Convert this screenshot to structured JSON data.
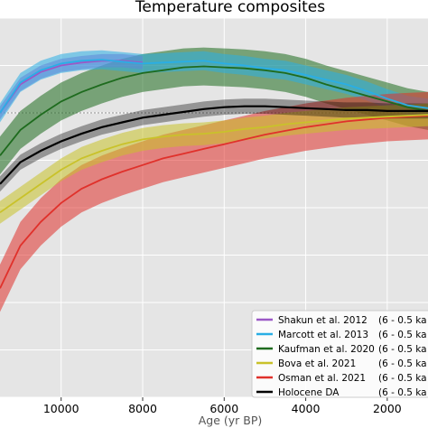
{
  "chart_data": {
    "type": "line",
    "title": "Temperature composites",
    "xlabel": "Age (yr BP)",
    "ylabel": "",
    "x_reversed": true,
    "xlim": [
      11500,
      1000
    ],
    "ylim": [
      -3.0,
      1.0
    ],
    "x_ticks": [
      10000,
      8000,
      6000,
      4000,
      2000
    ],
    "grid": true,
    "legend_placement": "bottom-right",
    "reference_line": 0,
    "series": [
      {
        "name": "Shakun et al. 2012",
        "legend_period": "(6 - 0.5 ka",
        "color": "#9b59c6",
        "x": [
          11500,
          11000,
          10500,
          10000,
          9500,
          9000,
          8500,
          8000
        ],
        "y": [
          0.0,
          0.3,
          0.43,
          0.5,
          0.53,
          0.55,
          0.55,
          0.53
        ],
        "band": 0.07
      },
      {
        "name": "Marcott et al. 2013",
        "legend_period": "(6 - 0.5 ka",
        "color": "#29aee5",
        "x": [
          11500,
          11000,
          10500,
          10000,
          9500,
          9000,
          8500,
          8000,
          7500,
          7000,
          6500,
          6000,
          5500,
          5000,
          4500,
          4000,
          3500,
          3000,
          2500,
          2000,
          1500,
          1000
        ],
        "y": [
          0.0,
          0.32,
          0.45,
          0.52,
          0.55,
          0.56,
          0.54,
          0.52,
          0.53,
          0.54,
          0.55,
          0.52,
          0.5,
          0.47,
          0.45,
          0.4,
          0.35,
          0.3,
          0.23,
          0.15,
          0.08,
          0.05
        ],
        "band": 0.1
      },
      {
        "name": "Kaufman et al. 2020",
        "legend_period": "(6 - 0.5 ka",
        "color": "#1e6b1e",
        "x": [
          11500,
          11000,
          10500,
          10000,
          9500,
          9000,
          8500,
          8000,
          7500,
          7000,
          6500,
          6000,
          5500,
          5000,
          4500,
          4000,
          3500,
          3000,
          2500,
          2000,
          1500,
          1000
        ],
        "y": [
          -0.45,
          -0.18,
          -0.02,
          0.12,
          0.22,
          0.3,
          0.37,
          0.42,
          0.45,
          0.48,
          0.49,
          0.48,
          0.47,
          0.45,
          0.42,
          0.37,
          0.3,
          0.24,
          0.18,
          0.12,
          0.06,
          0.02
        ],
        "band": 0.2
      },
      {
        "name": "Bova et al. 2021",
        "legend_period": "(6 - 0.5 ka",
        "color": "#c9c22a",
        "x": [
          11500,
          11000,
          10500,
          10000,
          9500,
          9000,
          8500,
          8000,
          7500,
          7000,
          6500,
          6000,
          5500,
          5000,
          4500,
          4000,
          3500,
          3000,
          2500,
          2000,
          1500,
          1000
        ],
        "y": [
          -1.05,
          -0.9,
          -0.75,
          -0.6,
          -0.48,
          -0.4,
          -0.33,
          -0.28,
          -0.25,
          -0.23,
          -0.22,
          -0.2,
          -0.17,
          -0.15,
          -0.12,
          -0.1,
          -0.08,
          -0.06,
          -0.05,
          -0.04,
          -0.03,
          -0.02
        ],
        "band": 0.12
      },
      {
        "name": "Osman et al. 2021",
        "legend_period": "(6 - 0.5 ka",
        "color": "#e0312b",
        "x": [
          11500,
          11000,
          10500,
          10000,
          9500,
          9000,
          8500,
          8000,
          7500,
          7000,
          6500,
          6000,
          5500,
          5000,
          4500,
          4000,
          3500,
          3000,
          2500,
          2000,
          1500,
          1000
        ],
        "y": [
          -1.85,
          -1.4,
          -1.15,
          -0.95,
          -0.8,
          -0.7,
          -0.62,
          -0.55,
          -0.48,
          -0.43,
          -0.38,
          -0.33,
          -0.28,
          -0.23,
          -0.19,
          -0.15,
          -0.12,
          -0.09,
          -0.07,
          -0.05,
          -0.04,
          -0.03
        ],
        "band": 0.25
      },
      {
        "name": "Holocene DA",
        "legend_period": "(6 - 0.5 ka",
        "color": "#000000",
        "x": [
          11500,
          11000,
          10500,
          10000,
          9500,
          9000,
          8500,
          8000,
          7500,
          7000,
          6500,
          6000,
          5500,
          5000,
          4500,
          4000,
          3500,
          3000,
          2500,
          2000,
          1500,
          1000
        ],
        "y": [
          -0.75,
          -0.52,
          -0.4,
          -0.3,
          -0.22,
          -0.15,
          -0.1,
          -0.05,
          -0.02,
          0.01,
          0.04,
          0.06,
          0.07,
          0.07,
          0.06,
          0.05,
          0.04,
          0.03,
          0.03,
          0.02,
          0.02,
          0.02
        ],
        "band": 0.08
      }
    ]
  }
}
